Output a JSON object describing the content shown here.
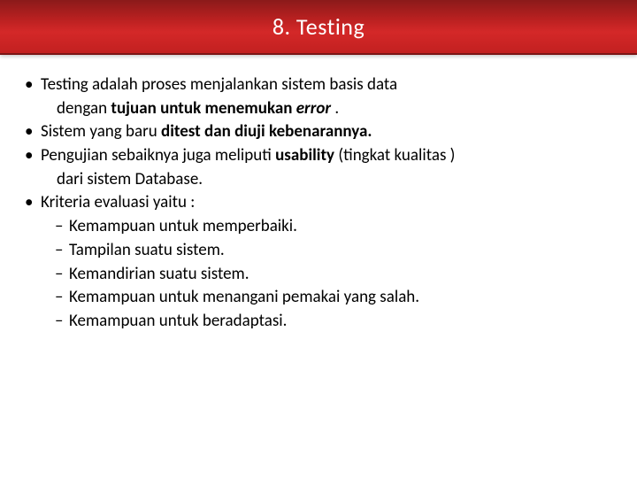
{
  "header": {
    "title": "8. Testing",
    "background_gradient": [
      "#8b1a1a",
      "#b82020",
      "#d42828",
      "#c22020"
    ],
    "title_color": "#ffffff",
    "title_fontsize": 26
  },
  "content": {
    "text_color": "#000000",
    "fontsize": 19,
    "bullets": [
      {
        "mark": "•",
        "lines": [
          {
            "segments": [
              {
                "t": "Testing  adalah  proses  menjalankan  sistem  basis  data"
              }
            ]
          },
          {
            "indent": true,
            "segments": [
              {
                "t": "dengan "
              },
              {
                "t": "tujuan untuk menemukan ",
                "bold": true
              },
              {
                "t": "error",
                "bold": true,
                "italic": true
              },
              {
                "t": " ."
              }
            ]
          }
        ]
      },
      {
        "mark": "•",
        "lines": [
          {
            "segments": [
              {
                "t": "Sistem yang baru "
              },
              {
                "t": "ditest dan diuji kebenarannya.",
                "bold": true
              }
            ]
          }
        ]
      },
      {
        "mark": "•",
        "lines": [
          {
            "segments": [
              {
                "t": "Pengujian  sebaiknya  juga  meliputi  "
              },
              {
                "t": "usability ",
                "bold": true
              },
              {
                "t": "(tingkat kualitas )"
              }
            ]
          },
          {
            "indent": true,
            "segments": [
              {
                "t": "dari  sistem  Database."
              }
            ]
          }
        ]
      },
      {
        "mark": "•",
        "lines": [
          {
            "segments": [
              {
                "t": "Kriteria evaluasi yaitu :"
              }
            ]
          }
        ],
        "subs": [
          {
            "mark": "–",
            "text": "Kemampuan untuk memperbaiki."
          },
          {
            "mark": "–",
            "text": "Tampilan suatu sistem."
          },
          {
            "mark": "–",
            "text": "Kemandirian suatu sistem."
          },
          {
            "mark": "–",
            "text": "Kemampuan untuk menangani pemakai yang salah."
          },
          {
            "mark": "–",
            "text": "Kemampuan untuk beradaptasi."
          }
        ]
      }
    ]
  }
}
